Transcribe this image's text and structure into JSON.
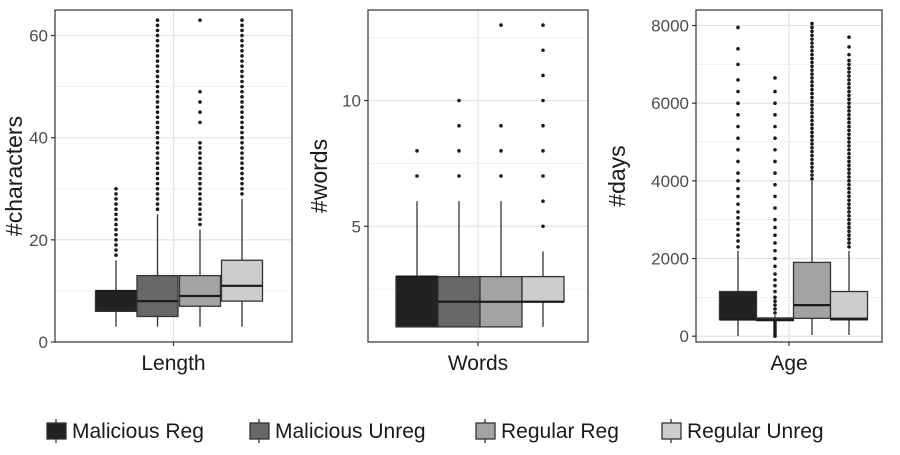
{
  "colors": {
    "series": [
      "#222222",
      "#686868",
      "#a3a3a3",
      "#cdcdcd"
    ],
    "grid_major": "#e2e2e2",
    "grid_minor": "#f1f1f1",
    "panel_border": "#333333",
    "outlier": "#1a1a1a"
  },
  "legend": {
    "position": "bottom",
    "items": [
      "Malicious Reg",
      "Malicious Unreg",
      "Regular Reg",
      "Regular Unreg"
    ]
  },
  "chart_data": [
    {
      "type": "box",
      "xlabel": "Length",
      "ylabel": "#characters",
      "ylim": [
        0,
        65
      ],
      "yticks": [
        0,
        20,
        40,
        60
      ],
      "grid": true,
      "series": [
        {
          "name": "Malicious Reg",
          "whisker_low": 3,
          "q1": 6,
          "median": 10,
          "q3": 10,
          "whisker_high": 16,
          "outliers": [
            17,
            18,
            19,
            20,
            21,
            22,
            23,
            24,
            25,
            26,
            27,
            28,
            29,
            30
          ]
        },
        {
          "name": "Malicious Unreg",
          "whisker_low": 3,
          "q1": 5,
          "median": 8,
          "q3": 13,
          "whisker_high": 25,
          "outliers": [
            26,
            27,
            28,
            29,
            30,
            31,
            32,
            33,
            34,
            35,
            36,
            37,
            38,
            39,
            40,
            41,
            42,
            43,
            44,
            45,
            46,
            47,
            48,
            49,
            50,
            51,
            52,
            53,
            54,
            55,
            56,
            57,
            58,
            59,
            60,
            61,
            62,
            63
          ]
        },
        {
          "name": "Regular Reg",
          "whisker_low": 3,
          "q1": 7,
          "median": 9,
          "q3": 13,
          "whisker_high": 22,
          "outliers": [
            23,
            24,
            25,
            26,
            27,
            28,
            29,
            30,
            31,
            32,
            33,
            34,
            35,
            36,
            37,
            38,
            39,
            43,
            45,
            47,
            49,
            63
          ]
        },
        {
          "name": "Regular Unreg",
          "whisker_low": 3,
          "q1": 8,
          "median": 11,
          "q3": 16,
          "whisker_high": 28,
          "outliers": [
            29,
            30,
            31,
            32,
            33,
            34,
            35,
            36,
            37,
            38,
            39,
            40,
            41,
            42,
            43,
            44,
            45,
            46,
            47,
            48,
            49,
            50,
            51,
            52,
            53,
            54,
            55,
            56,
            57,
            58,
            59,
            60,
            61,
            62,
            63
          ]
        }
      ]
    },
    {
      "type": "box",
      "xlabel": "Words",
      "ylabel": "#words",
      "ylim": [
        0.4,
        13.6
      ],
      "yticks": [
        5,
        10
      ],
      "grid": true,
      "series": [
        {
          "name": "Malicious Reg",
          "whisker_low": 1,
          "q1": 1,
          "median": 3,
          "q3": 3,
          "whisker_high": 6,
          "outliers": [
            7,
            8
          ]
        },
        {
          "name": "Malicious Unreg",
          "whisker_low": 1,
          "q1": 1,
          "median": 2,
          "q3": 3,
          "whisker_high": 6,
          "outliers": [
            7,
            8,
            9,
            10
          ]
        },
        {
          "name": "Regular Reg",
          "whisker_low": 1,
          "q1": 1,
          "median": 2,
          "q3": 3,
          "whisker_high": 6,
          "outliers": [
            7,
            8,
            9,
            13
          ]
        },
        {
          "name": "Regular Unreg",
          "whisker_low": 1,
          "q1": 2,
          "median": 2,
          "q3": 3,
          "whisker_high": 4,
          "outliers": [
            5,
            6,
            7,
            8,
            9,
            10,
            11,
            12,
            13
          ]
        }
      ]
    },
    {
      "type": "box",
      "xlabel": "Age",
      "ylabel": "#days",
      "ylim": [
        -150,
        8400
      ],
      "yticks": [
        0,
        2000,
        4000,
        6000,
        8000
      ],
      "grid": true,
      "series": [
        {
          "name": "Malicious Reg",
          "whisker_low": 0,
          "q1": 430,
          "median": 430,
          "q3": 1150,
          "whisker_high": 2200,
          "outliers": [
            2300,
            2450,
            2600,
            2750,
            2900,
            3050,
            3200,
            3400,
            3600,
            3800,
            4000,
            4200,
            4500,
            4800,
            5100,
            5400,
            5700,
            6000,
            6300,
            6600,
            7000,
            7400,
            7950
          ]
        },
        {
          "name": "Malicious Unreg",
          "whisker_low": 0,
          "q1": 400,
          "median": 420,
          "q3": 470,
          "whisker_high": 540,
          "outliers": [
            0,
            60,
            120,
            180,
            240,
            300,
            360,
            600,
            700,
            800,
            900,
            1000,
            1150,
            1300,
            1450,
            1600,
            1800,
            2000,
            2200,
            2400,
            2600,
            2800,
            3000,
            3300,
            3600,
            3900,
            4200,
            4500,
            4800,
            5100,
            5400,
            5700,
            6000,
            6300,
            6650
          ]
        },
        {
          "name": "Regular Reg",
          "whisker_low": 30,
          "q1": 460,
          "median": 800,
          "q3": 1900,
          "whisker_high": 4000,
          "outliers": [
            4050,
            4150,
            4250,
            4350,
            4450,
            4550,
            4650,
            4750,
            4850,
            4950,
            5050,
            5150,
            5250,
            5350,
            5450,
            5550,
            5650,
            5750,
            5850,
            5950,
            6050,
            6150,
            6250,
            6350,
            6450,
            6550,
            6650,
            6750,
            6850,
            6950,
            7050,
            7150,
            7250,
            7350,
            7450,
            7550,
            7650,
            7750,
            7850,
            7950,
            8050
          ]
        },
        {
          "name": "Regular Unreg",
          "whisker_low": 30,
          "q1": 420,
          "median": 450,
          "q3": 1150,
          "whisker_high": 2200,
          "outliers": [
            2300,
            2400,
            2500,
            2600,
            2700,
            2800,
            2900,
            3000,
            3100,
            3200,
            3300,
            3400,
            3500,
            3600,
            3700,
            3800,
            3900,
            4000,
            4100,
            4200,
            4300,
            4400,
            4500,
            4600,
            4700,
            4800,
            4900,
            5000,
            5100,
            5200,
            5300,
            5400,
            5500,
            5600,
            5700,
            5800,
            5900,
            6000,
            6100,
            6200,
            6300,
            6400,
            6500,
            6600,
            6700,
            6800,
            6900,
            7000,
            7100,
            7250,
            7450,
            7700
          ]
        }
      ]
    }
  ]
}
